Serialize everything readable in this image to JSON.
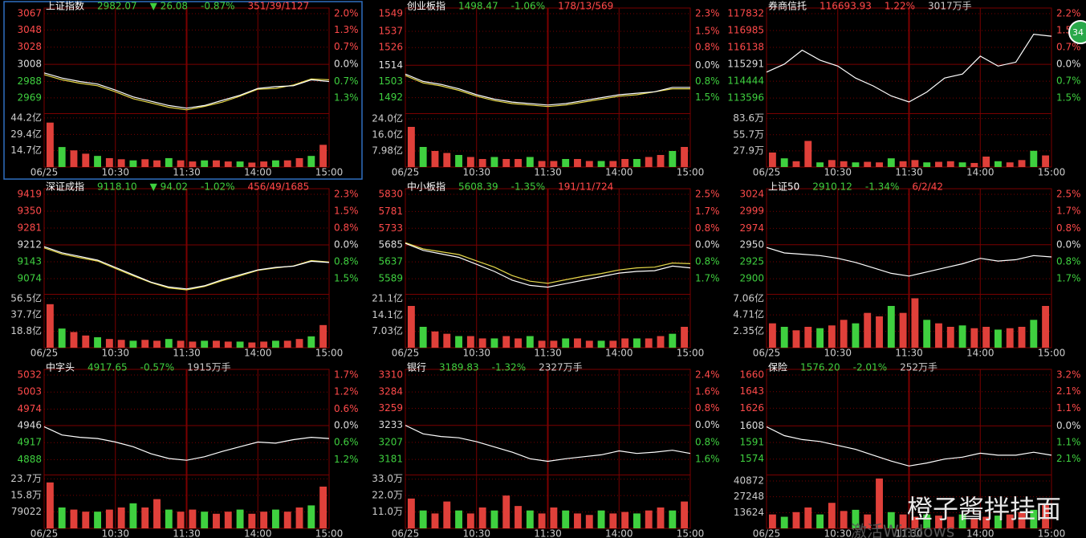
{
  "panels": [
    {
      "header": [
        {
          "text": "上证指数",
          "color": "#ffffff"
        },
        {
          "text": "2982.07",
          "color": "#3fd03f"
        },
        {
          "text": "▼ 26.08",
          "color": "#3fd03f"
        },
        {
          "text": "-0.87%",
          "color": "#3fd03f"
        },
        {
          "text": "351/39/1127",
          "color": "#ff4a4a"
        }
      ],
      "ylim": [
        2952,
        3067
      ],
      "yticks": [
        3067,
        3048,
        3028,
        3008,
        2988,
        2969
      ],
      "pct_labels": [
        "2.0%",
        "1.3%",
        "0.7%",
        "0.0%",
        "0.7%",
        "1.3%"
      ],
      "vlim": [
        0,
        47
      ],
      "vticks": [
        {
          "value": 44.2,
          "label": "44.2亿"
        },
        {
          "value": 29.4,
          "label": "29.4亿"
        },
        {
          "value": 14.7,
          "label": "14.7亿"
        }
      ],
      "times": [
        "06/25",
        "10:30",
        "11:30",
        "14:00",
        "15:00"
      ],
      "price": [
        2998,
        2992,
        2988,
        2985,
        2978,
        2970,
        2965,
        2960,
        2957,
        2960,
        2966,
        2972,
        2980,
        2982,
        2983,
        2990,
        2988
      ],
      "lead": [
        2996,
        2990,
        2986,
        2983,
        2976,
        2968,
        2963,
        2958,
        2955,
        2959,
        2964,
        2971,
        2979,
        2980,
        2984,
        2991,
        2990
      ],
      "volume": [
        40,
        18,
        15,
        12,
        10,
        8,
        7,
        6,
        7,
        6,
        8,
        6,
        5,
        6,
        6,
        5,
        5,
        4,
        5,
        6,
        6,
        8,
        10,
        20
      ],
      "selected": true
    },
    {
      "header": [
        {
          "text": "创业板指",
          "color": "#ffffff"
        },
        {
          "text": "1498.47",
          "color": "#3fd03f"
        },
        {
          "text": "-1.06%",
          "color": "#3fd03f"
        },
        {
          "text": "178/13/569",
          "color": "#ff4a4a"
        }
      ],
      "ylim": [
        1482,
        1549
      ],
      "yticks": [
        1549,
        1537,
        1526,
        1514,
        1503,
        1492
      ],
      "pct_labels": [
        "2.3%",
        "1.5%",
        "0.8%",
        "0.0%",
        "0.8%",
        "1.5%"
      ],
      "vlim": [
        0,
        26
      ],
      "vticks": [
        {
          "value": 24.0,
          "label": "24.0亿"
        },
        {
          "value": 16.0,
          "label": "16.0亿"
        },
        {
          "value": 7.98,
          "label": "7.98亿"
        }
      ],
      "times": [
        "06/25",
        "10:30",
        "11:30",
        "14:00",
        "15:00"
      ],
      "price": [
        1508,
        1503,
        1501,
        1498,
        1494,
        1491,
        1489,
        1488,
        1487,
        1488,
        1490,
        1492,
        1494,
        1495,
        1496,
        1499,
        1499
      ],
      "lead": [
        1507,
        1502,
        1500,
        1497,
        1493,
        1490,
        1488,
        1487,
        1486,
        1487,
        1489,
        1491,
        1493,
        1494,
        1496,
        1498,
        1498
      ],
      "volume": [
        20,
        10,
        8,
        7,
        6,
        5,
        4,
        5,
        4,
        4,
        5,
        3,
        3,
        4,
        4,
        3,
        3,
        3,
        4,
        4,
        5,
        6,
        8,
        10
      ]
    },
    {
      "header": [
        {
          "text": "券商信托",
          "color": "#ffffff"
        },
        {
          "text": "116693.93",
          "color": "#ff4a4a"
        },
        {
          "text": "1.22%",
          "color": "#ff4a4a"
        },
        {
          "text": "3017万手",
          "color": "#cccccc"
        }
      ],
      "ylim": [
        112876,
        117832
      ],
      "yticks": [
        117832,
        116985,
        116138,
        115291,
        114444,
        113596
      ],
      "pct_labels": [
        "2.2%",
        "1.5%",
        "0.7%",
        "0.0%",
        "0.7%",
        "1.5%"
      ],
      "vlim": [
        0,
        90
      ],
      "vticks": [
        {
          "value": 83.6,
          "label": "83.6万"
        },
        {
          "value": 55.7,
          "label": "55.7万"
        },
        {
          "value": 27.9,
          "label": "27.9万"
        }
      ],
      "times": [
        "06/25",
        "10:30",
        "11:30",
        "14:00",
        "15:00"
      ],
      "price": [
        114900,
        115300,
        116000,
        115500,
        115200,
        114600,
        114200,
        113700,
        113400,
        113900,
        114600,
        114800,
        115700,
        115200,
        115400,
        116800,
        116700
      ],
      "volume": [
        25,
        15,
        10,
        45,
        8,
        12,
        10,
        8,
        9,
        8,
        15,
        10,
        12,
        8,
        9,
        10,
        8,
        7,
        18,
        10,
        8,
        12,
        28,
        20
      ]
    },
    {
      "header": [
        {
          "text": "深证成指",
          "color": "#ffffff"
        },
        {
          "text": "9118.10",
          "color": "#3fd03f"
        },
        {
          "text": "▼ 94.02",
          "color": "#3fd03f"
        },
        {
          "text": "-1.02%",
          "color": "#3fd03f"
        },
        {
          "text": "456/49/1685",
          "color": "#ff4a4a"
        }
      ],
      "ylim": [
        9015,
        9419
      ],
      "yticks": [
        9419,
        9350,
        9281,
        9212,
        9143,
        9074
      ],
      "pct_labels": [
        "2.3%",
        "1.5%",
        "0.8%",
        "0.0%",
        "0.8%",
        "1.5%"
      ],
      "vlim": [
        0,
        60
      ],
      "vticks": [
        {
          "value": 56.5,
          "label": "56.5亿"
        },
        {
          "value": 37.7,
          "label": "37.7亿"
        },
        {
          "value": 18.8,
          "label": "18.8亿"
        }
      ],
      "times": [
        "06/25",
        "10:30",
        "11:30",
        "14:00",
        "15:00"
      ],
      "price": [
        9205,
        9180,
        9165,
        9150,
        9120,
        9090,
        9060,
        9040,
        9032,
        9045,
        9070,
        9090,
        9110,
        9120,
        9125,
        9145,
        9140
      ],
      "lead": [
        9200,
        9175,
        9160,
        9146,
        9116,
        9086,
        9058,
        9036,
        9028,
        9042,
        9066,
        9086,
        9108,
        9118,
        9126,
        9148,
        9142
      ],
      "volume": [
        50,
        22,
        18,
        14,
        12,
        10,
        9,
        8,
        9,
        8,
        10,
        8,
        7,
        8,
        8,
        7,
        7,
        6,
        7,
        8,
        8,
        10,
        13,
        26
      ]
    },
    {
      "header": [
        {
          "text": "中小板指",
          "color": "#ffffff"
        },
        {
          "text": "5608.39",
          "color": "#3fd03f"
        },
        {
          "text": "-1.35%",
          "color": "#3fd03f"
        },
        {
          "text": "191/11/724",
          "color": "#ff4a4a"
        }
      ],
      "ylim": [
        5548,
        5830
      ],
      "yticks": [
        5830,
        5781,
        5733,
        5685,
        5637,
        5589
      ],
      "pct_labels": [
        "2.5%",
        "1.7%",
        "0.8%",
        "0.0%",
        "0.8%",
        "1.7%"
      ],
      "vlim": [
        0,
        22.5
      ],
      "vticks": [
        {
          "value": 21.1,
          "label": "21.1亿"
        },
        {
          "value": 14.1,
          "label": "14.1亿"
        },
        {
          "value": 7.03,
          "label": "7.03亿"
        }
      ],
      "times": [
        "06/25",
        "10:30",
        "11:30",
        "14:00",
        "15:00"
      ],
      "price": [
        5690,
        5670,
        5660,
        5650,
        5630,
        5610,
        5585,
        5570,
        5565,
        5575,
        5585,
        5595,
        5605,
        5610,
        5612,
        5625,
        5620
      ],
      "lead": [
        5692,
        5674,
        5666,
        5658,
        5640,
        5622,
        5598,
        5582,
        5576,
        5586,
        5596,
        5604,
        5614,
        5620,
        5622,
        5634,
        5632
      ],
      "volume": [
        18,
        9,
        7,
        6,
        5,
        5,
        4,
        4,
        5,
        4,
        5,
        3,
        3,
        4,
        4,
        3,
        3,
        3,
        4,
        4,
        4,
        5,
        6,
        9
      ]
    },
    {
      "header": [
        {
          "text": "上证50",
          "color": "#ffffff"
        },
        {
          "text": "2910.12",
          "color": "#3fd03f"
        },
        {
          "text": "-1.34%",
          "color": "#3fd03f"
        },
        {
          "text": "6/2/42",
          "color": "#ff4a4a"
        }
      ],
      "ylim": [
        2879,
        3024
      ],
      "yticks": [
        3024,
        2999,
        2974,
        2950,
        2925,
        2900
      ],
      "pct_labels": [
        "2.5%",
        "1.7%",
        "0.8%",
        "0.0%",
        "0.8%",
        "1.7%"
      ],
      "vlim": [
        0,
        7.5
      ],
      "vticks": [
        {
          "value": 7.06,
          "label": "7.06亿"
        },
        {
          "value": 4.71,
          "label": "4.71亿"
        },
        {
          "value": 2.35,
          "label": "2.35亿"
        }
      ],
      "times": [
        "06/25",
        "10:30",
        "11:30",
        "14:00",
        "15:00"
      ],
      "price": [
        2946,
        2938,
        2936,
        2934,
        2930,
        2924,
        2916,
        2908,
        2904,
        2910,
        2916,
        2922,
        2930,
        2926,
        2928,
        2934,
        2932
      ],
      "volume": [
        3.5,
        3,
        2.5,
        3,
        2.8,
        3.2,
        4,
        3.5,
        5,
        4.5,
        6,
        5,
        7.1,
        4,
        3.5,
        3,
        3.2,
        2.8,
        3,
        2.6,
        2.8,
        3,
        4,
        6
      ]
    },
    {
      "header": [
        {
          "text": "中字头",
          "color": "#ffffff"
        },
        {
          "text": "4917.65",
          "color": "#3fd03f"
        },
        {
          "text": "-0.57%",
          "color": "#3fd03f"
        },
        {
          "text": "1915万手",
          "color": "#cccccc"
        }
      ],
      "ylim": [
        4864,
        5032
      ],
      "yticks": [
        5032,
        5003,
        4974,
        4946,
        4917,
        4888
      ],
      "pct_labels": [
        "1.7%",
        "1.2%",
        "0.6%",
        "0.0%",
        "0.6%",
        "1.2%"
      ],
      "vlim": [
        0,
        25
      ],
      "vticks": [
        {
          "value": 23.7,
          "label": "23.7万"
        },
        {
          "value": 15.8,
          "label": "15.8万"
        },
        {
          "value": 7.9022,
          "label": "79022"
        }
      ],
      "times": [
        "06/25",
        "10:30",
        "11:30",
        "14:00",
        "15:00"
      ],
      "price": [
        4944,
        4930,
        4926,
        4924,
        4918,
        4910,
        4898,
        4890,
        4887,
        4893,
        4902,
        4910,
        4918,
        4916,
        4922,
        4926,
        4924
      ],
      "volume": [
        22,
        10,
        9,
        8,
        8,
        9,
        10,
        12,
        10,
        14,
        9,
        8,
        9,
        8,
        7,
        8,
        9,
        7,
        8,
        9,
        8,
        10,
        11,
        20
      ]
    },
    {
      "header": [
        {
          "text": "银行",
          "color": "#ffffff"
        },
        {
          "text": "3189.83",
          "color": "#3fd03f"
        },
        {
          "text": "-1.32%",
          "color": "#3fd03f"
        },
        {
          "text": "2327万手",
          "color": "#cccccc"
        }
      ],
      "ylim": [
        3159,
        3310
      ],
      "yticks": [
        3310,
        3284,
        3259,
        3233,
        3207,
        3181
      ],
      "pct_labels": [
        "2.4%",
        "1.6%",
        "0.8%",
        "0.0%",
        "0.8%",
        "1.6%"
      ],
      "vlim": [
        0,
        35
      ],
      "vticks": [
        {
          "value": 33.0,
          "label": "33.0万"
        },
        {
          "value": 22.0,
          "label": "22.0万"
        },
        {
          "value": 11.0,
          "label": "11.0万"
        }
      ],
      "times": [
        "06/25",
        "10:30",
        "11:30",
        "14:00",
        "15:00"
      ],
      "price": [
        3233,
        3220,
        3216,
        3214,
        3208,
        3200,
        3192,
        3182,
        3178,
        3182,
        3185,
        3188,
        3194,
        3190,
        3192,
        3195,
        3190
      ],
      "volume": [
        20,
        12,
        10,
        18,
        12,
        10,
        14,
        12,
        22,
        15,
        12,
        10,
        14,
        12,
        10,
        9,
        12,
        10,
        11,
        10,
        12,
        14,
        12,
        18
      ]
    },
    {
      "header": [
        {
          "text": "保险",
          "color": "#ffffff"
        },
        {
          "text": "1576.20",
          "color": "#3fd03f"
        },
        {
          "text": "-2.01%",
          "color": "#3fd03f"
        },
        {
          "text": "252万手",
          "color": "#cccccc"
        }
      ],
      "ylim": [
        1559,
        1660
      ],
      "yticks": [
        1660,
        1643,
        1626,
        1608,
        1591,
        1574
      ],
      "pct_labels": [
        "3.2%",
        "2.1%",
        "1.1%",
        "0.0%",
        "1.1%",
        "2.1%"
      ],
      "vlim": [
        0,
        45000
      ],
      "vticks": [
        40872,
        27248,
        13624
      ],
      "times": [
        "06/25",
        "10:30",
        "11:30",
        "14:00",
        "15:00"
      ],
      "price": [
        1607,
        1598,
        1594,
        1592,
        1588,
        1584,
        1578,
        1572,
        1567,
        1570,
        1574,
        1576,
        1580,
        1578,
        1578,
        1581,
        1578
      ],
      "volume": [
        12000,
        10000,
        14000,
        18000,
        12000,
        22000,
        15000,
        16000,
        12000,
        43000,
        14000,
        12000,
        10000,
        12000,
        11000,
        10000,
        12000,
        9000,
        10000,
        11000,
        12000,
        14000,
        16000,
        20000
      ]
    }
  ],
  "badge": "34",
  "watermark": "橙子酱拌挂面",
  "system_notice": "激活Windows"
}
